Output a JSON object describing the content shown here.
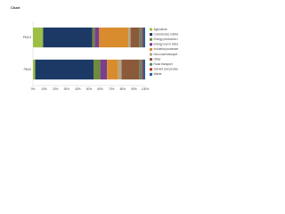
{
  "chart_data": {
    "type": "stacked-bar-horizontal",
    "title": "Chart",
    "categories": [
      "PM2.5",
      "PM10"
    ],
    "series": [
      {
        "name": "Agriculture",
        "color": "#9dbf45",
        "values": [
          9,
          2
        ]
      },
      {
        "name": "Commercial, institutional and households",
        "color": "#1c3966",
        "values": [
          44,
          52
        ]
      },
      {
        "name": "Energy production and distribution",
        "color": "#6e8a3c",
        "values": [
          2,
          6
        ]
      },
      {
        "name": "Energy use in industry",
        "color": "#7a3f8a",
        "values": [
          4,
          6
        ]
      },
      {
        "name": "Industrial processes",
        "color": "#d98c2e",
        "values": [
          26,
          10
        ]
      },
      {
        "name": "Non-road transport",
        "color": "#b5a58a",
        "values": [
          2,
          3
        ]
      },
      {
        "name": "Other",
        "color": "#8a5a3a",
        "values": [
          8,
          16
        ]
      },
      {
        "name": "Road transport",
        "color": "#5f8a6a",
        "values": [
          2,
          2
        ]
      },
      {
        "name": "Solvent and product use",
        "color": "#c0392b",
        "values": [
          1,
          1
        ]
      },
      {
        "name": "Waste",
        "color": "#2b5c9a",
        "values": [
          2,
          2
        ]
      }
    ],
    "xlim": [
      0,
      100
    ],
    "xticks": [
      {
        "value": 0,
        "label": "0%"
      },
      {
        "value": 10,
        "label": "10%"
      },
      {
        "value": 20,
        "label": "20%"
      },
      {
        "value": 30,
        "label": "30%"
      },
      {
        "value": 40,
        "label": "40%"
      },
      {
        "value": 50,
        "label": "50%"
      },
      {
        "value": 60,
        "label": "60%"
      },
      {
        "value": 70,
        "label": "70%"
      },
      {
        "value": 80,
        "label": "80%"
      },
      {
        "value": 90,
        "label": "90%"
      },
      {
        "value": 100,
        "label": "100%"
      }
    ],
    "grid": false
  }
}
